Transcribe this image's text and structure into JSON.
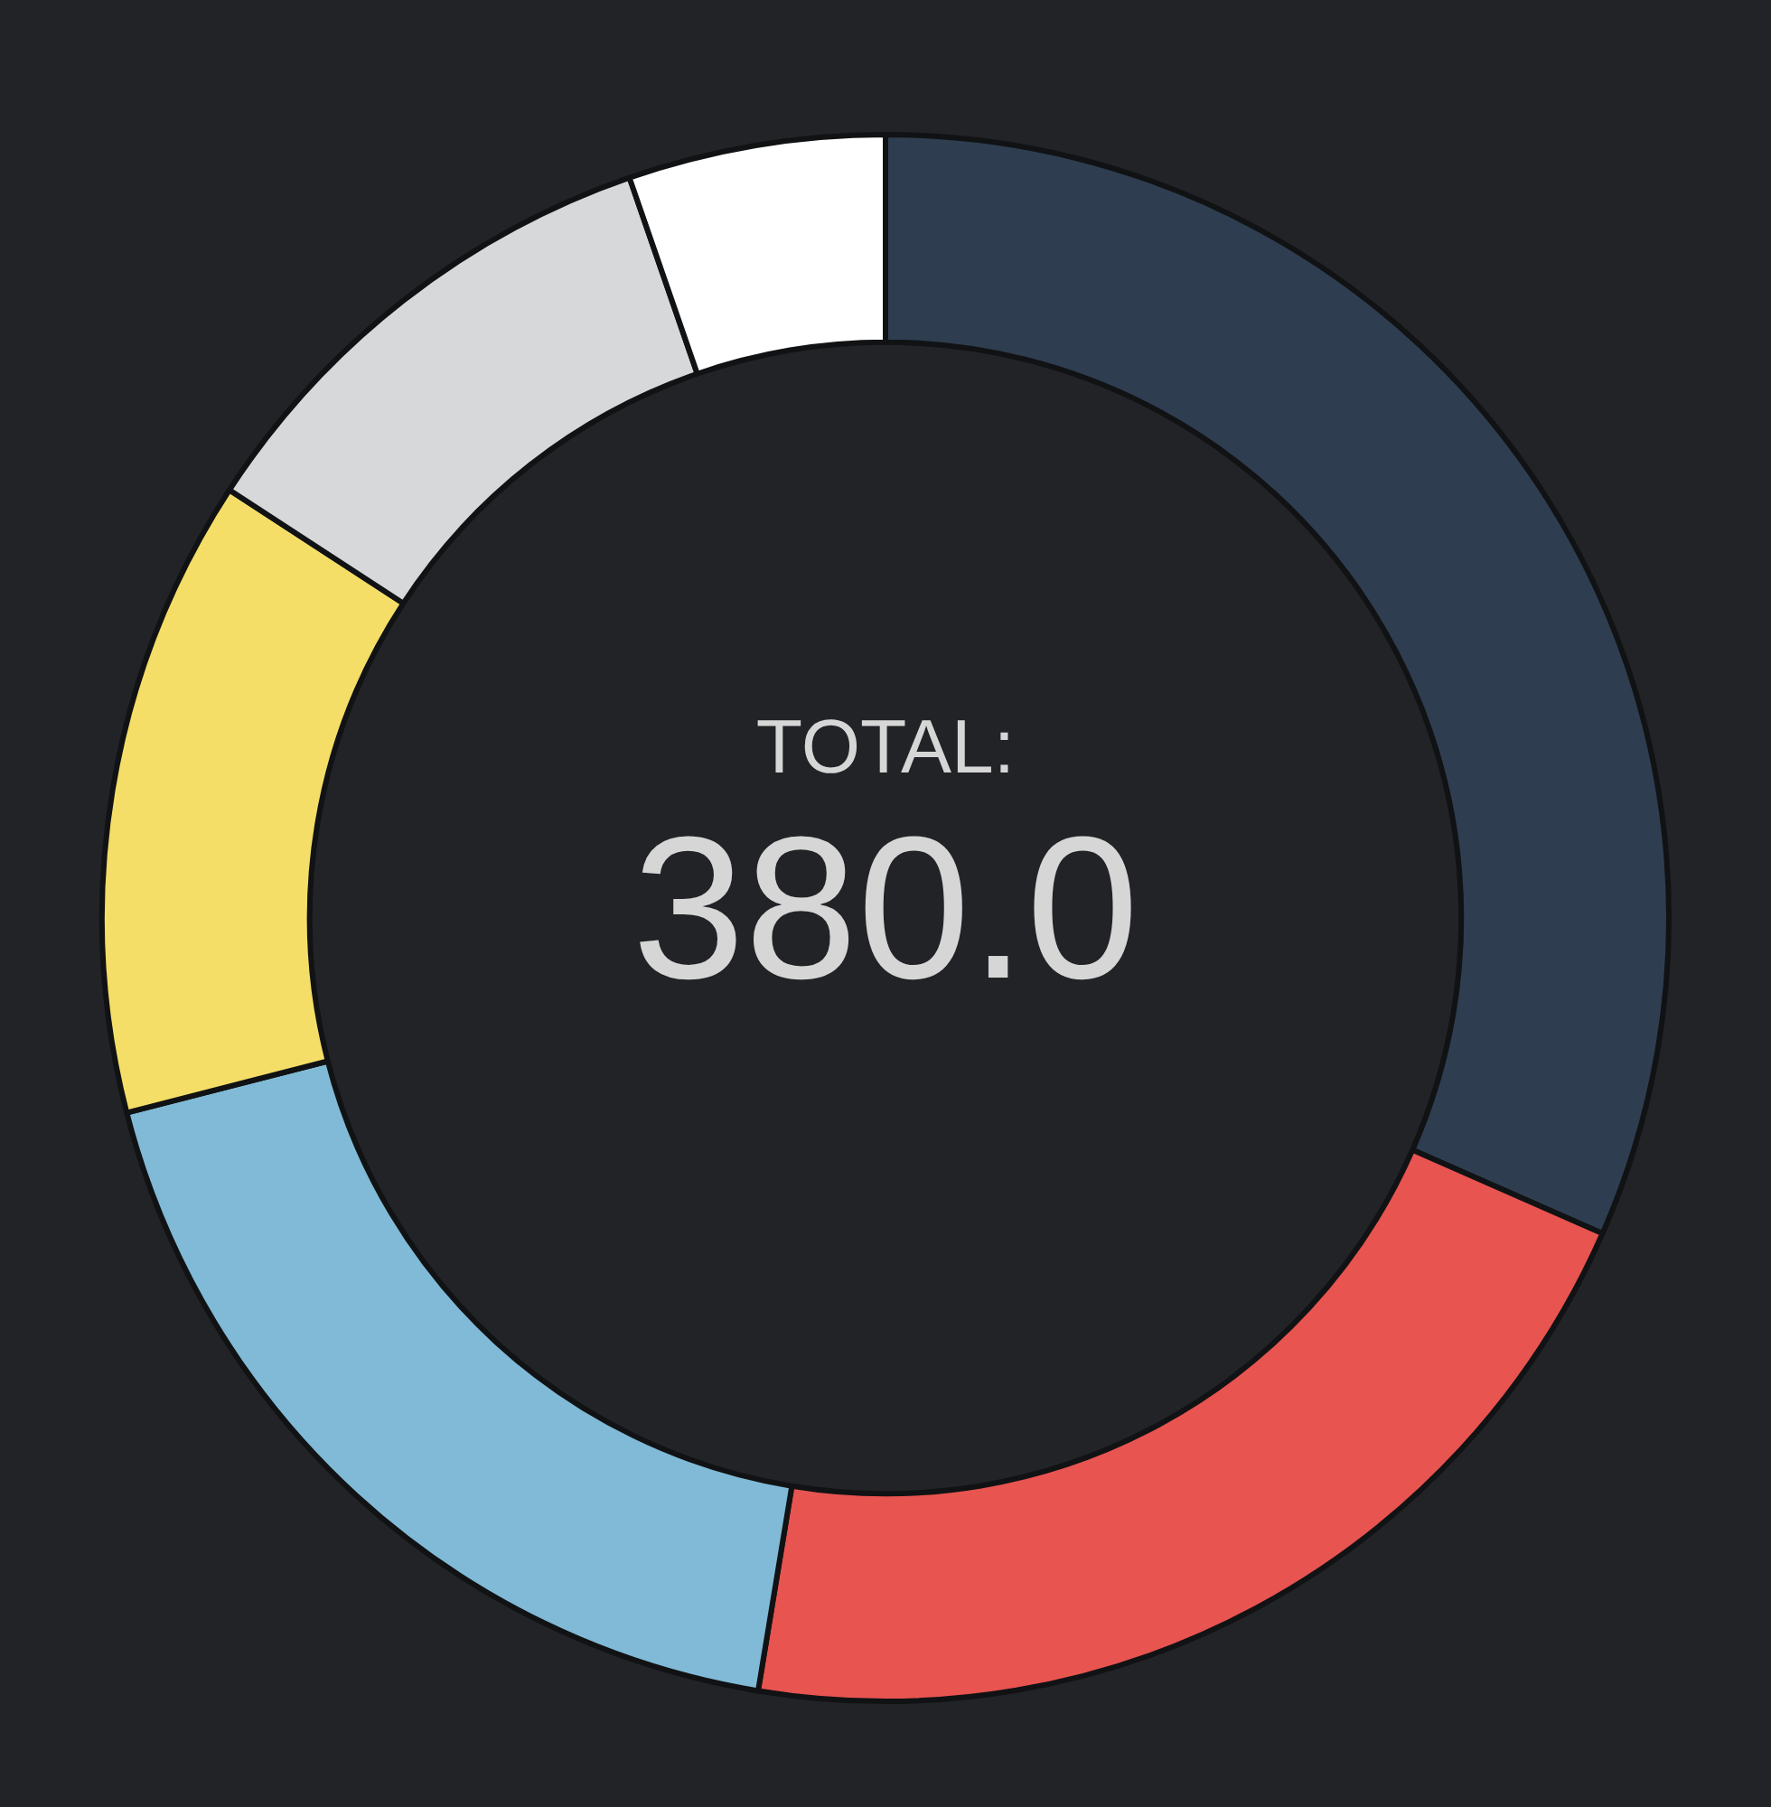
{
  "chart_data": {
    "type": "donut",
    "categories": [
      null,
      null,
      null,
      null,
      null,
      null
    ],
    "values": [
      31.6,
      21.0,
      18.4,
      13.2,
      10.5,
      5.3
    ],
    "colors": [
      "#2e3e50",
      "#e85450",
      "#80bad6",
      "#f4de67",
      "#d7d8da",
      "#ffffff"
    ],
    "annotations": [
      "TOTAL:",
      "380.0"
    ],
    "legend": false
  }
}
